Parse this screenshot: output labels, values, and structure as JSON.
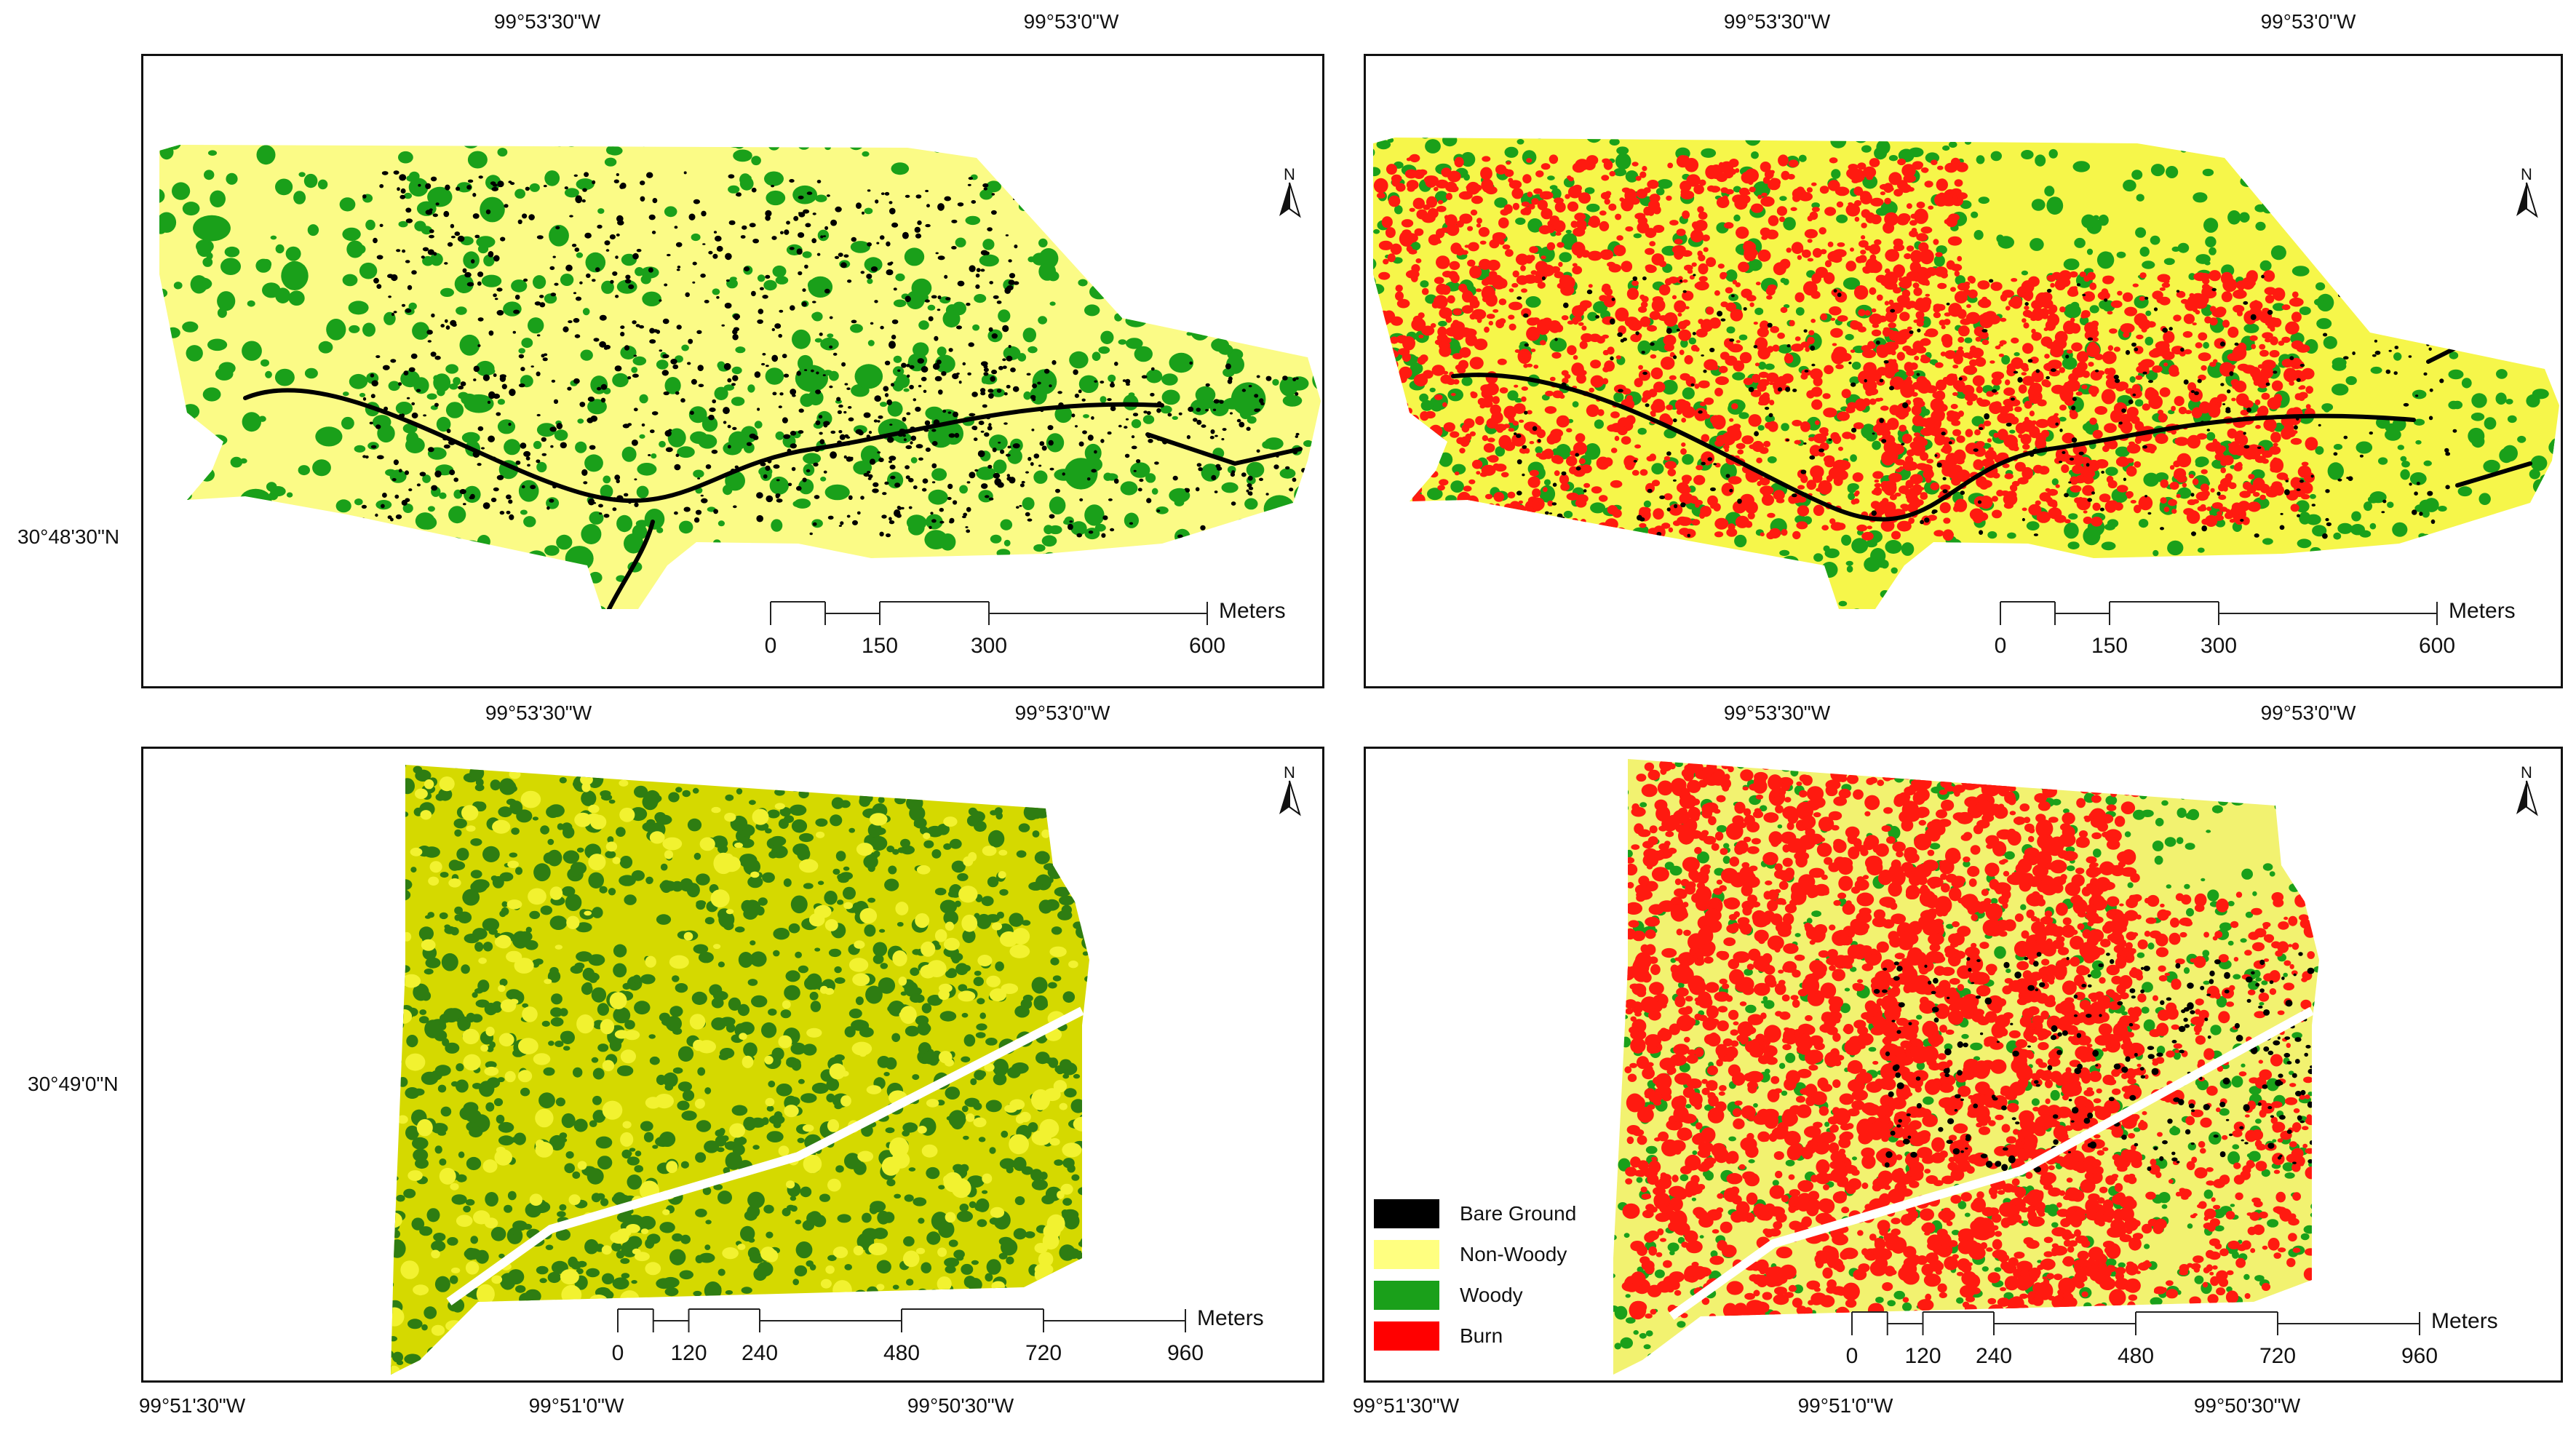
{
  "panels": [
    {
      "id": "top-left",
      "top_labels": [
        "99°53'30\"W",
        "99°53'0\"W"
      ],
      "left_label": "30°48'30\"N",
      "north": "N",
      "scale": {
        "ticks": [
          "0",
          "150",
          "300",
          "600"
        ],
        "unit": "Meters"
      },
      "classes_shown": [
        "Bare Ground",
        "Non-Woody",
        "Woody"
      ]
    },
    {
      "id": "top-right",
      "top_labels": [
        "99°53'30\"W",
        "99°53'0\"W"
      ],
      "north": "N",
      "scale": {
        "ticks": [
          "0",
          "150",
          "300",
          "600"
        ],
        "unit": "Meters"
      },
      "classes_shown": [
        "Bare Ground",
        "Non-Woody",
        "Woody",
        "Burn"
      ]
    },
    {
      "id": "bottom-left",
      "top_labels": [
        "99°53'30\"W",
        "99°53'0\"W"
      ],
      "left_label": "30°49'0\"N",
      "bottom_labels": [
        "99°51'30\"W",
        "99°51'0\"W",
        "99°50'30\"W"
      ],
      "north": "N",
      "scale": {
        "ticks": [
          "0",
          "120",
          "240",
          "480",
          "720",
          "960"
        ],
        "unit": "Meters"
      },
      "classes_shown": [
        "Non-Woody",
        "Woody"
      ]
    },
    {
      "id": "bottom-right",
      "top_labels": [
        "99°53'30\"W",
        "99°53'0\"W"
      ],
      "bottom_labels": [
        "99°51'30\"W",
        "99°51'0\"W",
        "99°50'30\"W"
      ],
      "north": "N",
      "scale": {
        "ticks": [
          "0",
          "120",
          "240",
          "480",
          "720",
          "960"
        ],
        "unit": "Meters"
      },
      "classes_shown": [
        "Bare Ground",
        "Non-Woody",
        "Woody",
        "Burn"
      ]
    }
  ],
  "legend": [
    {
      "label": "Bare Ground",
      "color": "#000000"
    },
    {
      "label": "Non-Woody",
      "color": "#ffff80"
    },
    {
      "label": "Woody",
      "color": "#1aa01a"
    },
    {
      "label": "Burn",
      "color": "#ff0000"
    }
  ],
  "colors": {
    "bare": "#000000",
    "nonwoody_pale": "#fbfb86",
    "nonwoody_bright": "#f2f230",
    "woody": "#1aa01a",
    "woody_dark": "#2e7d12",
    "burn": "#ff1a10",
    "frame": "#111111"
  }
}
